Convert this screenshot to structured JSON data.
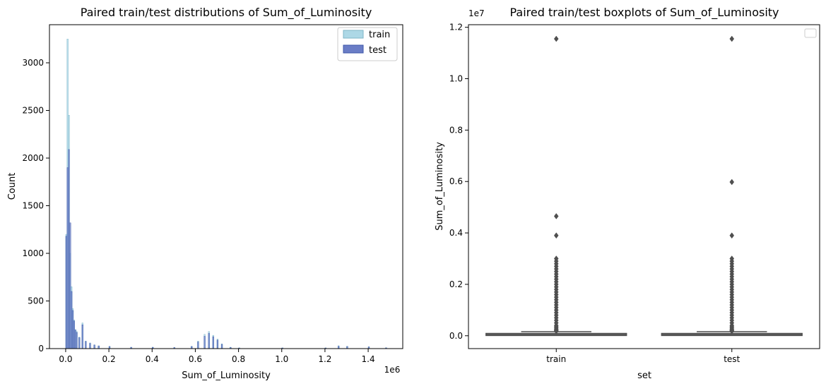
{
  "chart_data": [
    {
      "type": "histogram",
      "title": "Paired train/test distributions of Sum_of_Luminosity",
      "xlabel": "Sum_of_Luminosity",
      "ylabel": "Count",
      "x_offset_label": "1e6",
      "xlim": [
        -0.075,
        1.56
      ],
      "ylim": [
        0,
        3400
      ],
      "x_ticks": [
        0.0,
        0.2,
        0.4,
        0.6,
        0.8,
        1.0,
        1.2,
        1.4
      ],
      "x_tick_labels": [
        "0.0",
        "0.2",
        "0.4",
        "0.6",
        "0.8",
        "1.0",
        "1.2",
        "1.4"
      ],
      "y_ticks": [
        0,
        500,
        1000,
        1500,
        2000,
        2500,
        3000
      ],
      "y_tick_labels": [
        "0",
        "500",
        "1000",
        "1500",
        "2000",
        "2500",
        "3000"
      ],
      "legend": "top-right",
      "series": [
        {
          "name": "train",
          "color": "#add8e6",
          "x": [
            0.0,
            0.006,
            0.012,
            0.018,
            0.024,
            0.03,
            0.036,
            0.042,
            0.048,
            0.06,
            0.075,
            0.09,
            0.11,
            0.13,
            0.15,
            0.2,
            0.3,
            0.4,
            0.5,
            0.58,
            0.61,
            0.64,
            0.66,
            0.68,
            0.7,
            0.72,
            0.76,
            0.8,
            1.0,
            1.2,
            1.26,
            1.3,
            1.4,
            1.48
          ],
          "values": [
            1200,
            3250,
            2450,
            1000,
            650,
            420,
            300,
            200,
            180,
            120,
            270,
            80,
            60,
            40,
            30,
            25,
            15,
            15,
            12,
            25,
            80,
            150,
            180,
            140,
            100,
            50,
            15,
            8,
            8,
            8,
            30,
            25,
            20,
            10
          ]
        },
        {
          "name": "test",
          "color": "#6a7dc6",
          "x": [
            0.0,
            0.006,
            0.012,
            0.018,
            0.024,
            0.03,
            0.036,
            0.042,
            0.048,
            0.06,
            0.075,
            0.09,
            0.11,
            0.13,
            0.15,
            0.2,
            0.3,
            0.4,
            0.5,
            0.58,
            0.61,
            0.64,
            0.66,
            0.68,
            0.7,
            0.72,
            0.76,
            0.8,
            1.0,
            1.2,
            1.26,
            1.3,
            1.4,
            1.48
          ],
          "values": [
            1180,
            1900,
            2090,
            1320,
            600,
            400,
            290,
            195,
            170,
            115,
            250,
            75,
            55,
            38,
            28,
            22,
            14,
            14,
            11,
            22,
            70,
            130,
            160,
            125,
            90,
            45,
            12,
            7,
            7,
            7,
            25,
            22,
            18,
            8
          ]
        }
      ]
    },
    {
      "type": "box",
      "title": "Paired train/test boxplots of Sum_of_Luminosity",
      "xlabel": "set",
      "ylabel": "Sum_of_Luminosity",
      "y_offset_label": "1e7",
      "categories": [
        "train",
        "test"
      ],
      "ylim": [
        -0.05,
        1.21
      ],
      "y_ticks": [
        0.0,
        0.2,
        0.4,
        0.6,
        0.8,
        1.0,
        1.2
      ],
      "y_tick_labels": [
        "0.0",
        "0.2",
        "0.4",
        "0.6",
        "0.8",
        "1.0",
        "1.2"
      ],
      "box_color": "#808080",
      "line_color": "#4f4f4f",
      "boxes": [
        {
          "name": "train",
          "q1": 0.001,
          "median": 0.004,
          "q3": 0.009,
          "whisker_low": 0.0,
          "whisker_high": 0.016,
          "outliers": [
            0.018,
            0.02,
            0.022,
            0.025,
            0.03,
            0.035,
            0.04,
            0.05,
            0.06,
            0.07,
            0.08,
            0.09,
            0.1,
            0.11,
            0.12,
            0.13,
            0.14,
            0.15,
            0.16,
            0.17,
            0.18,
            0.19,
            0.2,
            0.21,
            0.22,
            0.23,
            0.24,
            0.25,
            0.26,
            0.27,
            0.28,
            0.29,
            0.3,
            0.39,
            0.465,
            1.155
          ]
        },
        {
          "name": "test",
          "q1": 0.001,
          "median": 0.004,
          "q3": 0.009,
          "whisker_low": 0.0,
          "whisker_high": 0.016,
          "outliers": [
            0.018,
            0.02,
            0.022,
            0.025,
            0.03,
            0.035,
            0.04,
            0.05,
            0.06,
            0.07,
            0.08,
            0.09,
            0.1,
            0.11,
            0.12,
            0.13,
            0.14,
            0.15,
            0.16,
            0.17,
            0.18,
            0.19,
            0.2,
            0.21,
            0.22,
            0.23,
            0.24,
            0.25,
            0.26,
            0.27,
            0.28,
            0.29,
            0.3,
            0.39,
            0.598,
            1.155
          ]
        }
      ]
    }
  ]
}
